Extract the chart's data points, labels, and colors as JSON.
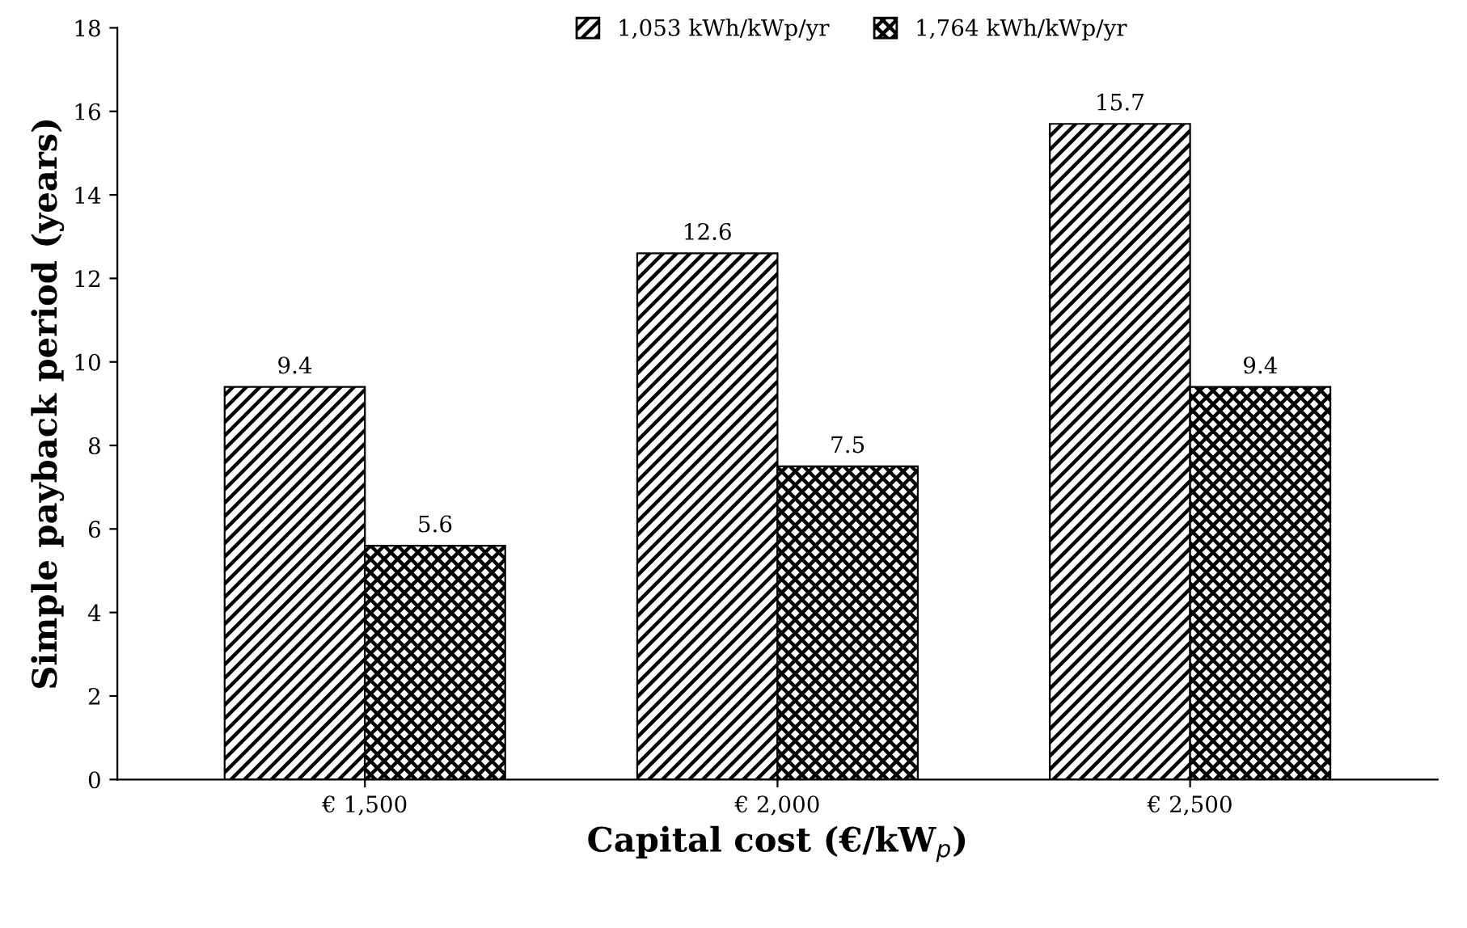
{
  "chart_data": {
    "type": "bar",
    "xlabel": "Capital cost (€/kW$_{p}$)",
    "ylabel": "Simple payback period (years)",
    "categories": [
      "€ 1,500",
      "€ 2,000",
      "€ 2,500"
    ],
    "series": [
      {
        "name": "1,053 kWh/kWp/yr",
        "color": "#000000",
        "values": [
          9.4,
          12.6,
          15.7
        ]
      },
      {
        "name": "1,764 kWh/kWp/yr",
        "color": "#000000",
        "values": [
          5.6,
          7.5,
          9.4
        ]
      }
    ],
    "ylim": [
      0,
      18
    ],
    "yticks": [
      0,
      2,
      4,
      6,
      8,
      10,
      12,
      14,
      16,
      18
    ],
    "grid": false,
    "legend": "top right",
    "data_labels": true
  }
}
